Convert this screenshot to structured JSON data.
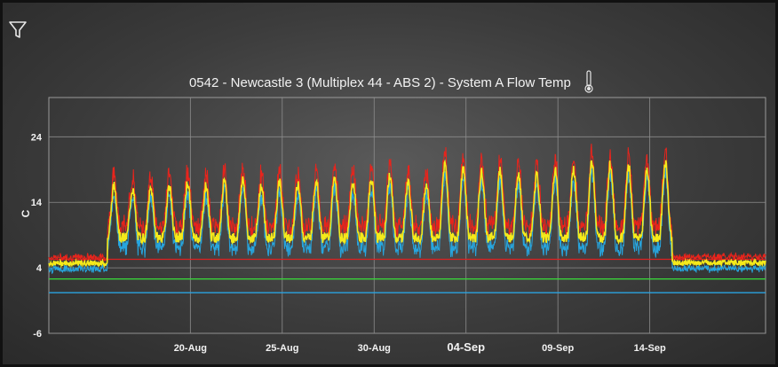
{
  "header": {
    "title": "0542 - Newcastle 3 (Multiplex 44 - ABS 2) - System A Flow Temp"
  },
  "chart_data": {
    "type": "line",
    "title": "0542 - Newcastle 3 (Multiplex 44 - ABS 2) - System A Flow Temp",
    "ylabel": "C",
    "xlabel": "",
    "ylim": [
      -6,
      30
    ],
    "yticks": [
      -6,
      4,
      14,
      24
    ],
    "xticks": [
      {
        "label": "20-Aug",
        "day": 20,
        "bold": false
      },
      {
        "label": "25-Aug",
        "day": 25,
        "bold": false
      },
      {
        "label": "30-Aug",
        "day": 30,
        "bold": false
      },
      {
        "label": "04-Sep",
        "day": 35,
        "bold": true
      },
      {
        "label": "09-Sep",
        "day": 40,
        "bold": false
      },
      {
        "label": "14-Sep",
        "day": 45,
        "bold": false
      }
    ],
    "x_range_days": [
      12.3,
      51.3
    ],
    "grid": true,
    "colors": {
      "max": "#e8241c",
      "avg": "#f5ea1a",
      "min": "#27a5de",
      "upper_threshold": "#e02020",
      "target": "#39d23a",
      "lower_threshold": "#2aa3e0"
    },
    "reference_lines": [
      {
        "name": "upper_threshold",
        "y": 5.3
      },
      {
        "name": "target",
        "y": 2.3
      },
      {
        "name": "lower_threshold",
        "y": 0.2
      }
    ],
    "segments": [
      {
        "start": 12.3,
        "end": 15.5,
        "mode": "flat",
        "base": 4.7
      },
      {
        "start": 15.5,
        "end": 46.2,
        "mode": "cycle",
        "base": 8.6
      },
      {
        "start": 46.2,
        "end": 51.3,
        "mode": "flat",
        "base": 4.8
      }
    ],
    "daily_peaks": [
      16.5,
      16.0,
      16.0,
      16.5,
      17.0,
      16.5,
      17.0,
      17.5,
      16.5,
      17.0,
      17.0,
      17.5,
      17.5,
      17.0,
      17.5,
      18.0,
      17.0,
      16.5,
      20.0,
      19.0,
      18.5,
      19.0,
      18.5,
      18.0,
      19.0,
      19.0,
      20.0,
      20.0,
      19.5,
      19.0,
      20.0,
      21.5
    ]
  }
}
